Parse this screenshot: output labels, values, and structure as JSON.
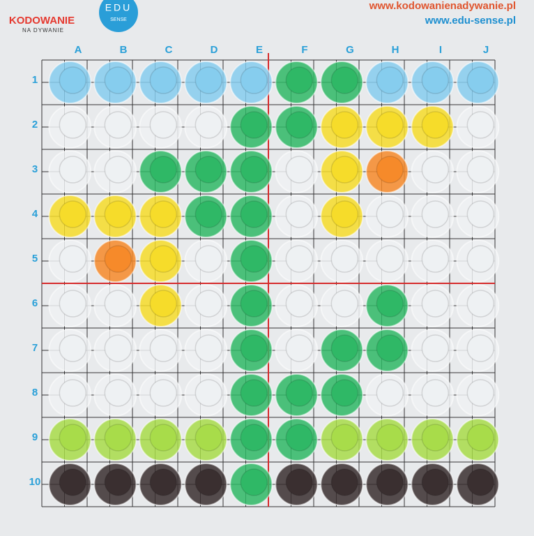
{
  "header": {
    "logo_title": "KODOWANIE",
    "logo_subtitle": "NA DYWANIE",
    "badge_top": "EDU",
    "badge_bottom": "SENSE",
    "url_1": "www.kodowanienadywanie.pl",
    "url_2": "www.edu-sense.pl"
  },
  "board": {
    "columns": [
      "A",
      "B",
      "C",
      "D",
      "E",
      "F",
      "G",
      "H",
      "I",
      "J"
    ],
    "rows": [
      "1",
      "2",
      "3",
      "4",
      "5",
      "6",
      "7",
      "8",
      "9",
      "10"
    ],
    "palette": {
      "blue": "#86cdee",
      "green": "#2fb866",
      "yellow": "#f6dc2a",
      "orange": "#f68a2a",
      "white": "#eef1f3",
      "lime": "#a8dc4a",
      "dark": "#3a2f30"
    },
    "cups": [
      [
        "blue",
        "blue",
        "blue",
        "blue",
        "blue",
        "green",
        "green",
        "blue",
        "blue",
        "blue"
      ],
      [
        "white",
        "white",
        "white",
        "white",
        "green",
        "green",
        "yellow",
        "yellow",
        "yellow",
        "white"
      ],
      [
        "white",
        "white",
        "green",
        "green",
        "green",
        "white",
        "yellow",
        "orange",
        "white",
        "white"
      ],
      [
        "yellow",
        "yellow",
        "yellow",
        "green",
        "green",
        "white",
        "yellow",
        "white",
        "white",
        "white"
      ],
      [
        "white",
        "orange",
        "yellow",
        "white",
        "green",
        "white",
        "white",
        "white",
        "white",
        "white"
      ],
      [
        "white",
        "white",
        "yellow",
        "white",
        "green",
        "white",
        "white",
        "green",
        "white",
        "white"
      ],
      [
        "white",
        "white",
        "white",
        "white",
        "green",
        "white",
        "green",
        "green",
        "white",
        "white"
      ],
      [
        "white",
        "white",
        "white",
        "white",
        "green",
        "green",
        "green",
        "white",
        "white",
        "white"
      ],
      [
        "lime",
        "lime",
        "lime",
        "lime",
        "green",
        "green",
        "lime",
        "lime",
        "lime",
        "lime"
      ],
      [
        "dark",
        "dark",
        "dark",
        "dark",
        "green",
        "dark",
        "dark",
        "dark",
        "dark",
        "dark"
      ]
    ]
  }
}
